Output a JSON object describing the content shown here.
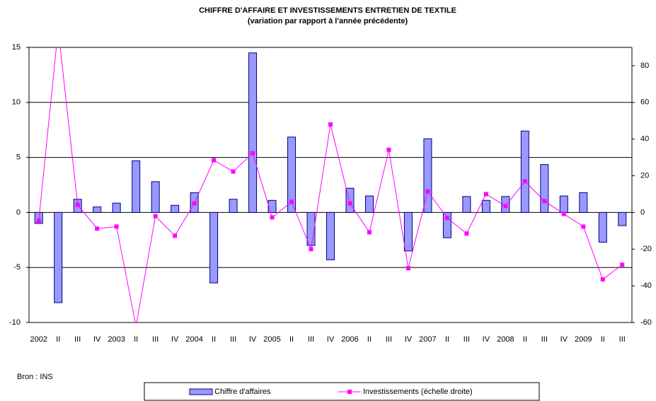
{
  "chart_data": {
    "type": "bar_line",
    "title": "CHIFFRE D'AFFAIRE ET INVESTISSEMENTS ENTRETIEN DE TEXTILE",
    "subtitle": "(variation par rapport à l'année précédente)",
    "categories": [
      "2002",
      "II",
      "III",
      "IV",
      "2003",
      "II",
      "III",
      "IV",
      "2004",
      "II",
      "III",
      "IV",
      "2005",
      "II",
      "III",
      "IV",
      "2006",
      "II",
      "III",
      "IV",
      "2007",
      "II",
      "III",
      "IV",
      "2008",
      "II",
      "III",
      "IV",
      "2009",
      "II",
      "III"
    ],
    "series": [
      {
        "name": "Chiffre d'affaires",
        "type": "bar",
        "color": "#9999ff",
        "values": [
          -1.0,
          -8.2,
          1.2,
          0.5,
          0.85,
          4.7,
          2.8,
          0.65,
          1.8,
          -6.4,
          1.2,
          14.5,
          1.1,
          6.85,
          -3.0,
          -4.3,
          2.2,
          1.5,
          0,
          -3.5,
          6.7,
          -2.3,
          1.45,
          1.1,
          1.45,
          7.4,
          4.35,
          1.5,
          1.8,
          -2.7,
          -1.2
        ]
      },
      {
        "name": "Investissements (échelle droite)",
        "type": "line",
        "axis": "y2",
        "color": "#ff00ff",
        "values": [
          -4.5,
          100,
          4.2,
          -8.8,
          -7.7,
          -62,
          -2,
          -12.7,
          5,
          28.5,
          22.3,
          32.3,
          -2.7,
          5.8,
          -20,
          48,
          5,
          -10.8,
          34.2,
          -30.4,
          11.5,
          -3,
          -11.5,
          10,
          3.5,
          17,
          6.2,
          -0.8,
          -7.7,
          -36.5,
          -28.5
        ]
      }
    ],
    "ylim": [
      -10,
      15
    ],
    "yticks": [
      -10,
      -5,
      0,
      5,
      10,
      15
    ],
    "y2lim": [
      -60,
      90
    ],
    "y2ticks": [
      -60,
      -40,
      -20,
      0,
      20,
      40,
      60,
      80
    ],
    "grid": true,
    "legend": "bottom",
    "source": "Bron : INS"
  }
}
